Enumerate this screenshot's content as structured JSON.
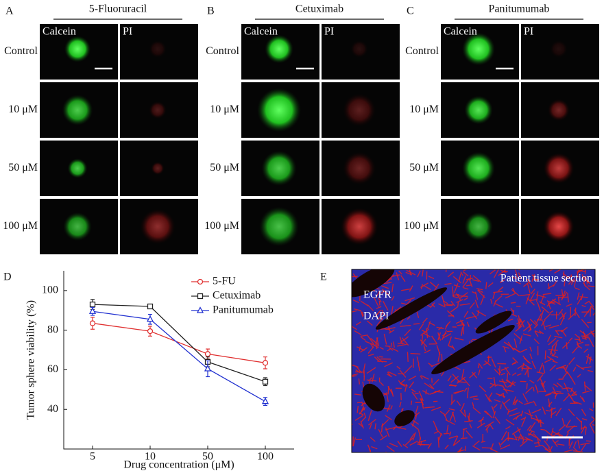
{
  "panels": [
    {
      "letter": "A",
      "title": "5-Fluoruracil",
      "columns": [
        "Calcein",
        "PI"
      ],
      "rows": [
        "Control",
        "10 μM",
        "50 μM",
        "100 μM"
      ]
    },
    {
      "letter": "B",
      "title": "Cetuximab",
      "columns": [
        "Calcein",
        "PI"
      ],
      "rows": [
        "Control",
        "10 μM",
        "50 μM",
        "100 μM"
      ]
    },
    {
      "letter": "C",
      "title": "Panitumumab",
      "columns": [
        "Calcein",
        "PI"
      ],
      "rows": [
        "Control",
        "10 μM",
        "50 μM",
        "100 μM"
      ]
    }
  ],
  "chart_data": {
    "type": "line",
    "panel_label": "D",
    "x_label": "Drug concentration (μM)",
    "y_label": "Tumor sphere viability (%)",
    "categories": [
      "5",
      "10",
      "50",
      "100"
    ],
    "ylim": [
      20,
      110
    ],
    "yticks": [
      40,
      60,
      80,
      100
    ],
    "legend": "top-right",
    "series": [
      {
        "name": "5-FU",
        "color": "#e03030",
        "marker": "circle",
        "values": [
          83.5,
          79.5,
          68,
          63.5
        ],
        "errors": [
          3,
          2.5,
          2.5,
          3
        ]
      },
      {
        "name": "Cetuximab",
        "color": "#222222",
        "marker": "square",
        "values": [
          93,
          92,
          64,
          54
        ],
        "errors": [
          2.5,
          1,
          2.5,
          2
        ]
      },
      {
        "name": "Panitumumab",
        "color": "#2030d0",
        "marker": "triangle",
        "values": [
          89.5,
          85.5,
          60.5,
          44
        ],
        "errors": [
          2,
          2.5,
          4,
          2
        ]
      }
    ]
  },
  "panel_e": {
    "letter": "E",
    "labels": [
      "EGFR",
      "DAPI"
    ],
    "caption": "Patient tissue section"
  }
}
